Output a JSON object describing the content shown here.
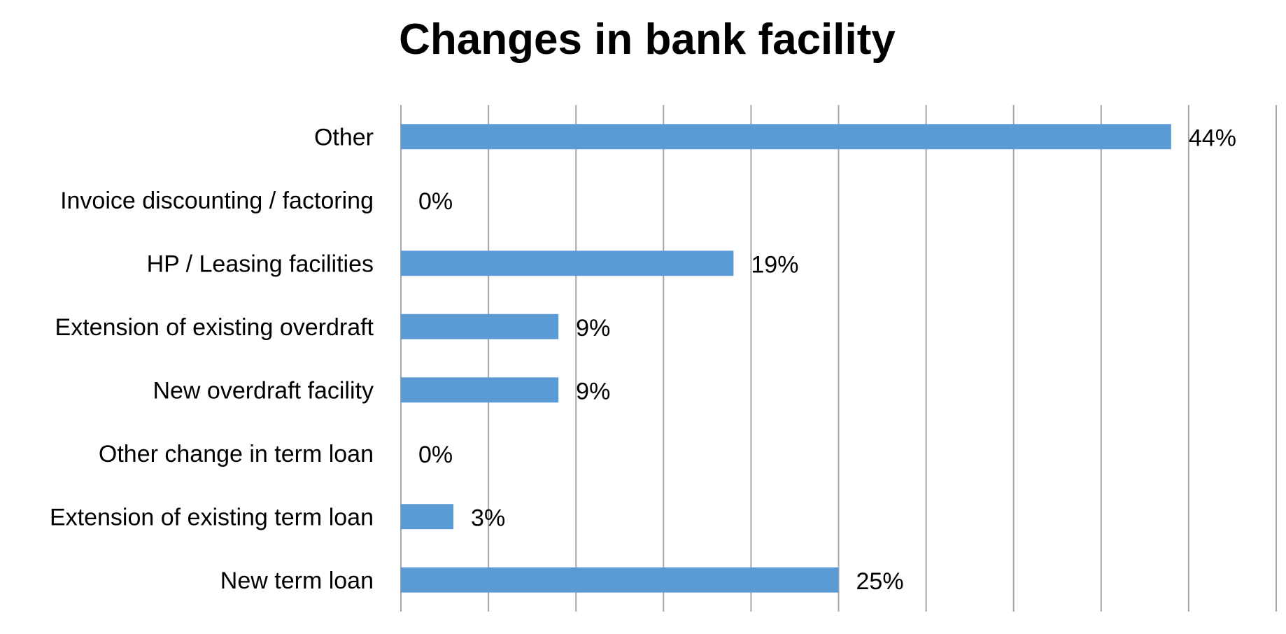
{
  "chart_data": {
    "type": "bar",
    "orientation": "horizontal",
    "title": "Changes in bank facility",
    "categories": [
      "Other",
      "Invoice discounting / factoring",
      "HP / Leasing facilities",
      "Extension of existing overdraft",
      "New overdraft facility",
      "Other change in term loan",
      "Extension of existing term loan",
      "New term loan"
    ],
    "values": [
      44,
      0,
      19,
      9,
      9,
      0,
      3,
      25
    ],
    "data_labels": [
      "44%",
      "0%",
      "19%",
      "9%",
      "9%",
      "0%",
      "3%",
      "25%"
    ],
    "value_unit": "%",
    "xlim": [
      0,
      50
    ],
    "major_unit": 5,
    "grid": true,
    "legend": "none",
    "bar_color": "#5b9bd5",
    "grid_color": "#a6a6a6"
  }
}
